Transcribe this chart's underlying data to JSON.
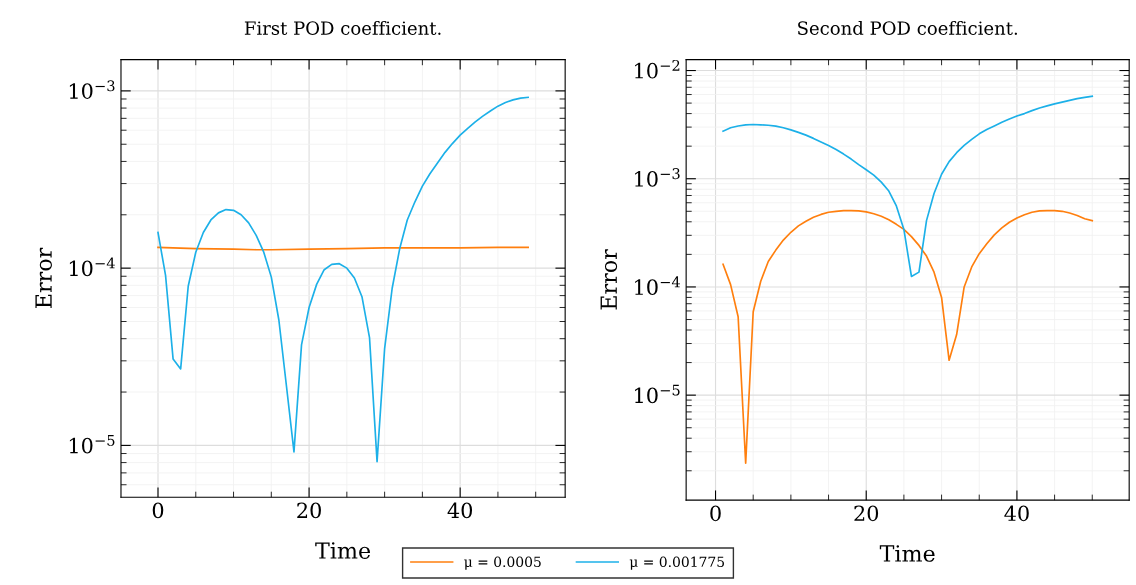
{
  "chart_data": [
    {
      "type": "line",
      "title": "First POD coefficient.",
      "xlabel": "Time",
      "ylabel": "Error",
      "log": "y",
      "grid": true,
      "legend": "bottom",
      "xlim": [
        -4.9,
        53.9
      ],
      "xticks": [
        0,
        20,
        40
      ],
      "ylim": [
        5.1e-06,
        0.0015
      ],
      "yticks": [
        {
          "value": 1e-05,
          "label": "10$^{−5}$"
        },
        {
          "value": 0.0001,
          "label": "10$^{−4}$"
        },
        {
          "value": 0.001,
          "label": "10$^{−3}$"
        }
      ],
      "series": [
        {
          "name": "μ = 0.0005",
          "color": "#ff7f0e",
          "x": [
            0,
            5,
            10,
            13,
            15,
            20,
            25,
            30,
            35,
            40,
            45,
            49
          ],
          "values": [
            0.000131,
            0.000129,
            0.000128,
            0.000127,
            0.000127,
            0.000128,
            0.000129,
            0.00013,
            0.00013,
            0.00013,
            0.000131,
            0.000131
          ]
        },
        {
          "name": "μ = 0.001775",
          "color": "#1cb0e8",
          "x": [
            0,
            1,
            2,
            3,
            4,
            5,
            6,
            7,
            8,
            9,
            10,
            11,
            12,
            13,
            14,
            15,
            16,
            17,
            18,
            19,
            20,
            21,
            22,
            23,
            24,
            25,
            26,
            27,
            28,
            29,
            30,
            31,
            32,
            33,
            34,
            35,
            36,
            37,
            38,
            39,
            40,
            41,
            42,
            43,
            44,
            45,
            46,
            47,
            48,
            49
          ],
          "values": [
            0.000159,
            9.1e-05,
            3.07e-05,
            2.7e-05,
            7.9e-05,
            0.000123,
            0.000159,
            0.000187,
            0.000205,
            0.000214,
            0.000212,
            0.0002,
            0.00018,
            0.000153,
            0.000123,
            8.9e-05,
            5.1e-05,
            2.17e-05,
            9.2e-06,
            3.69e-05,
            6e-05,
            8.1e-05,
            9.8e-05,
            0.000105,
            0.000106,
            0.0001,
            8.8e-05,
            6.9e-05,
            4.06e-05,
            8.1e-06,
            3.52e-05,
            7.7e-05,
            0.000129,
            0.000187,
            0.000236,
            0.00029,
            0.000341,
            0.000392,
            0.00045,
            0.000506,
            0.000563,
            0.000615,
            0.000668,
            0.00072,
            0.00077,
            0.00082,
            0.00086,
            0.00089,
            0.00091,
            0.00092
          ]
        }
      ]
    },
    {
      "type": "line",
      "title": "Second POD coefficient.",
      "xlabel": "Time",
      "ylabel": "Error",
      "log": "y",
      "grid": true,
      "xlim": [
        -3.9,
        54.9
      ],
      "xticks": [
        0,
        20,
        40
      ],
      "ylim": [
        1.07e-06,
        0.0126
      ],
      "yticks": [
        {
          "value": 1e-05,
          "label": "10$^{−5}$"
        },
        {
          "value": 0.0001,
          "label": "10$^{−4}$"
        },
        {
          "value": 0.001,
          "label": "10$^{−3}$"
        },
        {
          "value": 0.01,
          "label": "10$^{−2}$"
        }
      ],
      "series": [
        {
          "color": "#ff7f0e",
          "x": [
            1,
            2,
            3,
            4,
            5,
            6,
            7,
            8,
            9,
            10,
            11,
            12,
            13,
            14,
            15,
            16,
            17,
            18,
            19,
            20,
            21,
            22,
            23,
            24,
            25,
            26,
            27,
            28,
            29,
            30,
            31,
            32,
            33,
            34,
            35,
            36,
            37,
            38,
            39,
            40,
            41,
            42,
            43,
            44,
            45,
            46,
            47,
            48,
            49,
            50
          ],
          "values": [
            0.000162,
            0.000105,
            5.3e-05,
            2.35e-06,
            5.9e-05,
            0.000113,
            0.000172,
            0.000219,
            0.000271,
            0.00032,
            0.000367,
            0.000405,
            0.00044,
            0.000468,
            0.00049,
            0.0005,
            0.000508,
            0.000508,
            0.000505,
            0.000494,
            0.000475,
            0.00045,
            0.000418,
            0.000379,
            0.00034,
            0.000292,
            0.000242,
            0.000193,
            0.000137,
            8e-05,
            2.1e-05,
            3.63e-05,
            0.0001,
            0.000153,
            0.000203,
            0.000251,
            0.000303,
            0.000351,
            0.000396,
            0.000434,
            0.000465,
            0.00049,
            0.000505,
            0.000508,
            0.000508,
            0.0005,
            0.000482,
            0.000458,
            0.000427,
            0.00041
          ]
        },
        {
          "color": "#1cb0e8",
          "x": [
            1,
            2,
            3,
            4,
            5,
            6,
            7,
            8,
            9,
            10,
            11,
            12,
            13,
            14,
            15,
            16,
            17,
            18,
            19,
            20,
            21,
            22,
            23,
            24,
            25,
            26,
            27,
            28,
            29,
            30,
            31,
            32,
            33,
            34,
            35,
            36,
            37,
            38,
            39,
            40,
            41,
            42,
            43,
            44,
            45,
            46,
            47,
            48,
            49,
            50
          ],
          "values": [
            0.00275,
            0.00296,
            0.00307,
            0.00315,
            0.00317,
            0.00315,
            0.00312,
            0.00306,
            0.00296,
            0.00283,
            0.00268,
            0.00253,
            0.00236,
            0.00219,
            0.00203,
            0.00186,
            0.00169,
            0.00152,
            0.00135,
            0.00121,
            0.00108,
            0.00093,
            0.00077,
            0.00056,
            0.00034,
            0.000125,
            0.000137,
            0.00041,
            0.00073,
            0.0011,
            0.00144,
            0.00174,
            0.00203,
            0.00231,
            0.0026,
            0.00285,
            0.00307,
            0.00332,
            0.00356,
            0.0038,
            0.004,
            0.00426,
            0.0045,
            0.00471,
            0.00492,
            0.0051,
            0.0053,
            0.0055,
            0.00565,
            0.00578
          ]
        }
      ]
    }
  ]
}
